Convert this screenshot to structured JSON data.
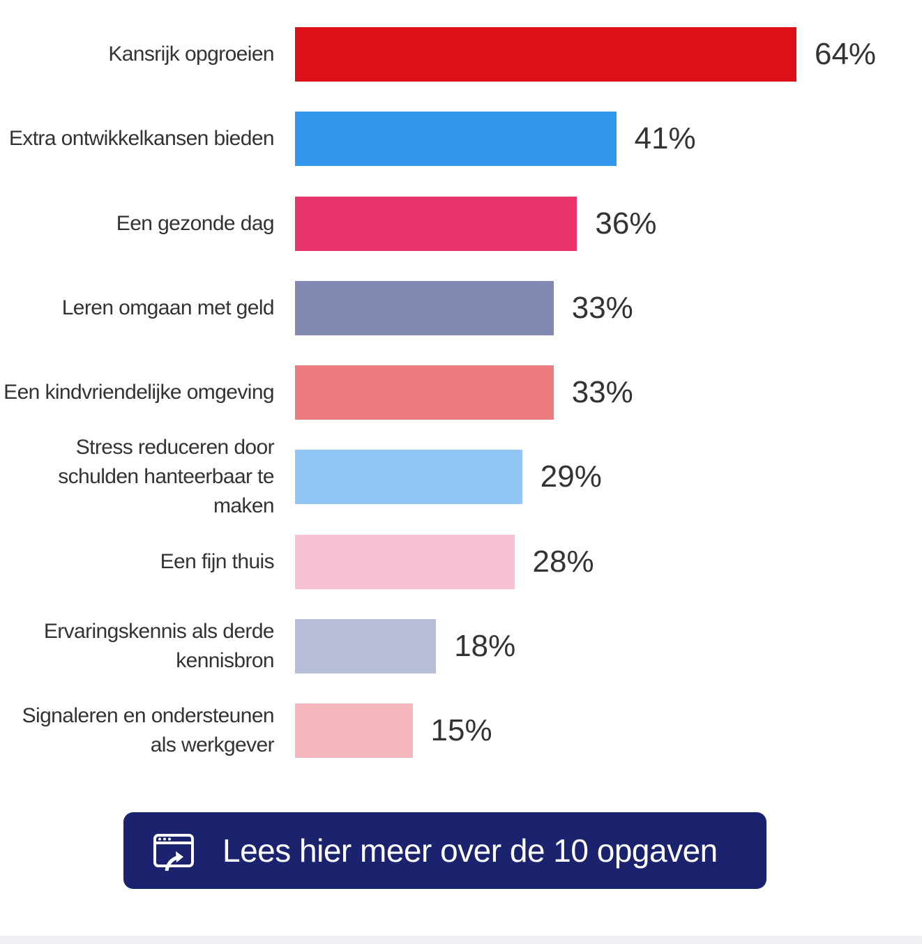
{
  "chart_data": {
    "type": "barh",
    "categories": [
      "Kansrijk opgroeien",
      "Extra ontwikkelkansen bieden",
      "Een gezonde dag",
      "Leren omgaan met geld",
      "Een kindvriendelijke omgeving",
      "Stress reduceren door schulden hanteerbaar te maken",
      "Een fijn thuis",
      "Ervaringskennis als derde kennisbron",
      "Signaleren en ondersteunen als werkgever"
    ],
    "values": [
      64,
      41,
      36,
      33,
      33,
      29,
      28,
      18,
      15
    ],
    "value_labels": [
      "64%",
      "41%",
      "36%",
      "33%",
      "33%",
      "29%",
      "28%",
      "18%",
      "15%"
    ],
    "colors": [
      "#dc1118",
      "#3097ea",
      "#e8346a",
      "#8389b3",
      "#ec7c80",
      "#90c5f4",
      "#f6c1d3",
      "#b8bdd8",
      "#f5b7bc"
    ]
  },
  "button": {
    "label": "Lees hier meer over de 10 opgaven"
  }
}
